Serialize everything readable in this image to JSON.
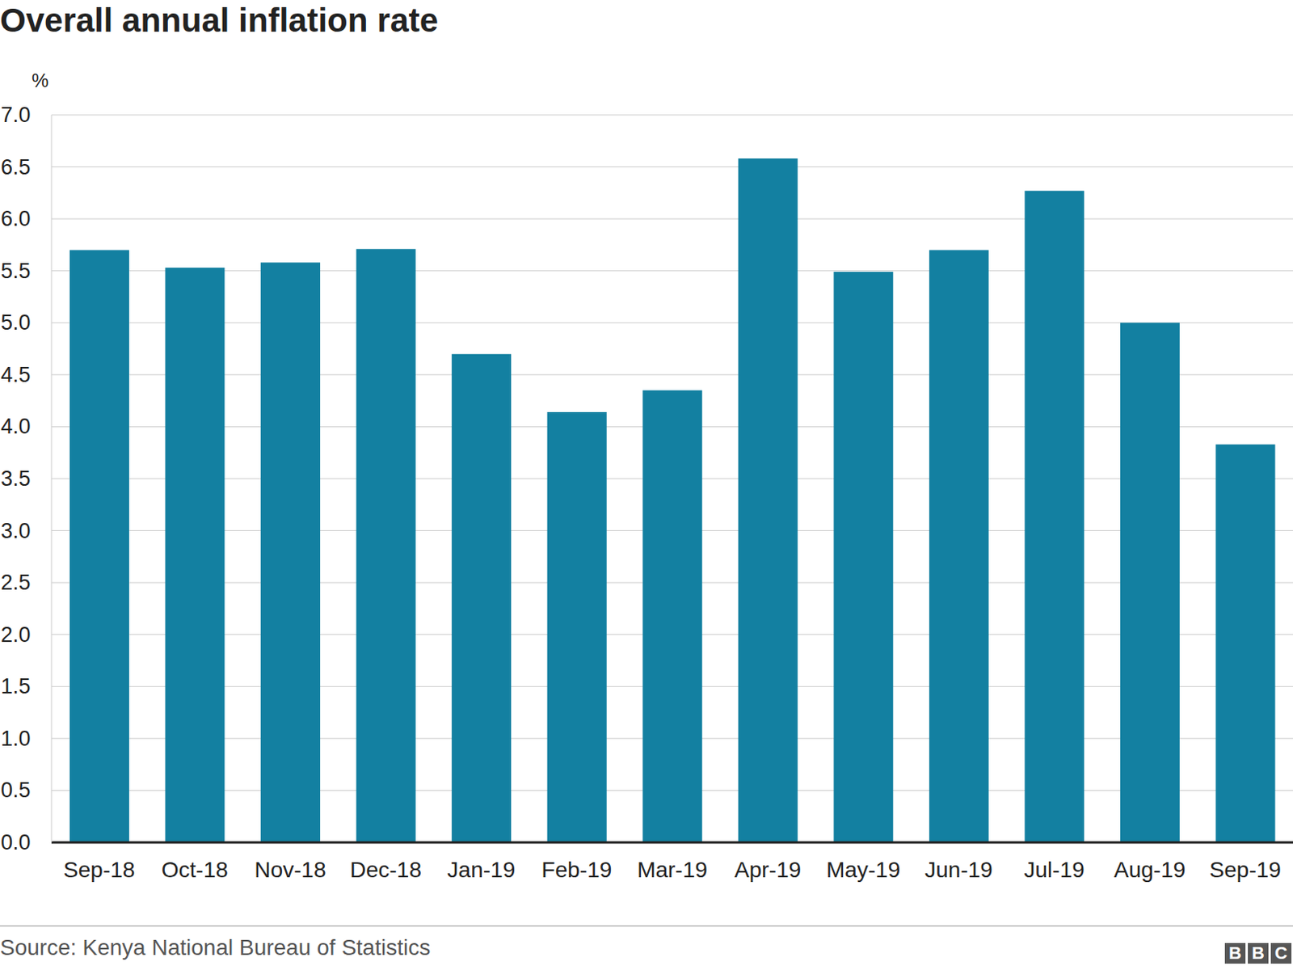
{
  "chart_data": {
    "type": "bar",
    "title": "Overall annual inflation rate",
    "y_label": "%",
    "categories": [
      "Sep-18",
      "Oct-18",
      "Nov-18",
      "Dec-18",
      "Jan-19",
      "Feb-19",
      "Mar-19",
      "Apr-19",
      "May-19",
      "Jun-19",
      "Jul-19",
      "Aug-19",
      "Sep-19"
    ],
    "values": [
      5.7,
      5.53,
      5.58,
      5.71,
      4.7,
      4.14,
      4.35,
      6.58,
      5.49,
      5.7,
      6.27,
      5.0,
      3.83
    ],
    "color": "#1380a1",
    "ylim": [
      0,
      7
    ],
    "yticks": [
      {
        "value": 0,
        "label": "0.0"
      },
      0.5,
      {
        "value": 1,
        "label": "1.0"
      },
      1.5,
      {
        "value": 2,
        "label": "2.0"
      },
      2.5,
      {
        "value": 3,
        "label": "3.0"
      },
      3.5,
      {
        "value": 4,
        "label": "4.0"
      },
      4.5,
      {
        "value": 5,
        "label": "5.0"
      },
      5.5,
      {
        "value": 6,
        "label": "6.0"
      },
      6.5,
      {
        "value": 7,
        "label": "7.0"
      }
    ],
    "grid": true,
    "source": "Source: Kenya National Bureau of Statistics",
    "logo": "BBC"
  }
}
